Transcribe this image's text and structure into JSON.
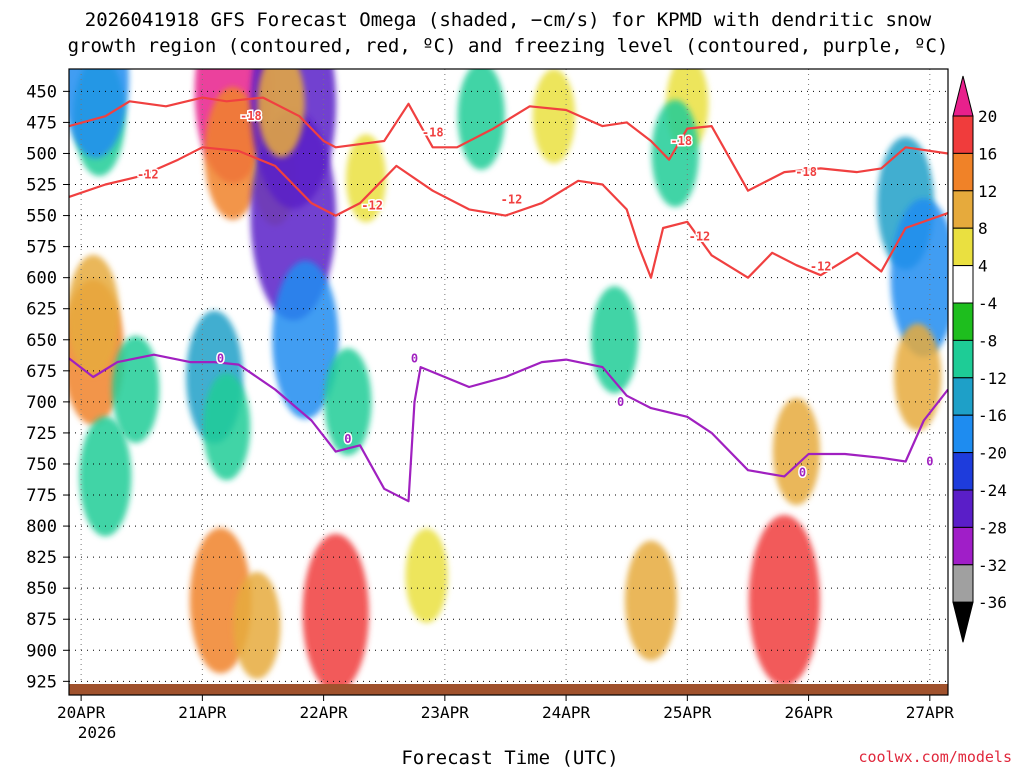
{
  "chart_data": {
    "type": "heatmap",
    "title_line1": "2026041918 GFS Forecast Omega (shaded, −cm/s) for KPMD with dendritic snow",
    "title_line2": "growth region (contoured, red, ºC) and freezing level (contoured, purple, ºC)",
    "xlabel": "Forecast Time (UTC)",
    "credit": "coolwx.com/models",
    "x_ticks": [
      "20APR",
      "21APR",
      "22APR",
      "23APR",
      "24APR",
      "25APR",
      "26APR",
      "27APR"
    ],
    "x_year": "2026",
    "x_range_days": [
      -0.1,
      7.15
    ],
    "y_range_hpa": [
      432,
      936
    ],
    "y_ticks": [
      450,
      475,
      500,
      525,
      550,
      575,
      600,
      625,
      650,
      675,
      700,
      725,
      750,
      775,
      800,
      825,
      850,
      875,
      900,
      925
    ],
    "colorbar": {
      "labels": [
        "20",
        "16",
        "12",
        "8",
        "4",
        "-4",
        "-8",
        "-12",
        "-16",
        "-20",
        "-24",
        "-28",
        "-32",
        "-36"
      ],
      "colors": [
        "#e8208c",
        "#f03c3c",
        "#f08228",
        "#e6aa3c",
        "#eae040",
        "#ffffff",
        "#1ebe1e",
        "#1ecc96",
        "#1ea0c8",
        "#1e8cf0",
        "#1e3cdc",
        "#5a1ec8",
        "#a01ec8",
        "#a0a0a0",
        "#000000"
      ]
    },
    "omega_cells": [
      {
        "day": 0.1,
        "p": 660,
        "value": 14
      },
      {
        "day": 0.1,
        "p": 630,
        "value": 10
      },
      {
        "day": 0.15,
        "p": 470,
        "value": -10
      },
      {
        "day": 0.12,
        "p": 440,
        "value": -16
      },
      {
        "day": 0.2,
        "p": 760,
        "value": -10
      },
      {
        "day": 0.45,
        "p": 690,
        "value": -8
      },
      {
        "day": 1.25,
        "p": 450,
        "value": 20
      },
      {
        "day": 1.25,
        "p": 500,
        "value": 12
      },
      {
        "day": 1.1,
        "p": 680,
        "value": -12
      },
      {
        "day": 1.2,
        "p": 720,
        "value": -8
      },
      {
        "day": 1.15,
        "p": 860,
        "value": 14
      },
      {
        "day": 1.45,
        "p": 880,
        "value": 8
      },
      {
        "day": 1.6,
        "p": 520,
        "value": 6
      },
      {
        "day": 1.75,
        "p": 460,
        "value": -24
      },
      {
        "day": 1.75,
        "p": 550,
        "value": -24
      },
      {
        "day": 1.65,
        "p": 460,
        "value": 8
      },
      {
        "day": 1.85,
        "p": 650,
        "value": -16
      },
      {
        "day": 2.1,
        "p": 870,
        "value": 16
      },
      {
        "day": 2.2,
        "p": 700,
        "value": -8
      },
      {
        "day": 2.35,
        "p": 520,
        "value": 5
      },
      {
        "day": 2.85,
        "p": 840,
        "value": 6
      },
      {
        "day": 3.3,
        "p": 470,
        "value": -8
      },
      {
        "day": 3.9,
        "p": 470,
        "value": 6
      },
      {
        "day": 4.4,
        "p": 650,
        "value": -8
      },
      {
        "day": 4.7,
        "p": 860,
        "value": 10
      },
      {
        "day": 5.8,
        "p": 860,
        "value": 18
      },
      {
        "day": 5.9,
        "p": 740,
        "value": 8
      },
      {
        "day": 6.8,
        "p": 540,
        "value": -12
      },
      {
        "day": 6.95,
        "p": 600,
        "value": -16
      },
      {
        "day": 6.9,
        "p": 680,
        "value": 8
      },
      {
        "day": 5.0,
        "p": 460,
        "value": 6
      },
      {
        "day": 4.9,
        "p": 500,
        "value": -8
      }
    ],
    "series": [
      {
        "name": "-18 C isotherm",
        "color": "#f04040",
        "label": "-18",
        "x": [
          -0.1,
          0.2,
          0.4,
          0.7,
          1.0,
          1.2,
          1.5,
          1.8,
          2.0,
          2.1,
          2.5,
          2.7,
          2.9,
          3.1,
          3.4,
          3.7,
          4.0,
          4.3,
          4.5,
          4.7,
          4.85,
          5.0,
          5.2,
          5.5,
          5.8,
          6.1,
          6.4,
          6.6,
          6.8,
          7.15
        ],
        "y": [
          478,
          470,
          458,
          462,
          455,
          458,
          455,
          470,
          490,
          495,
          490,
          460,
          495,
          495,
          480,
          462,
          465,
          478,
          475,
          490,
          505,
          480,
          478,
          530,
          515,
          512,
          515,
          512,
          495,
          500
        ]
      },
      {
        "name": "-12 C isotherm",
        "color": "#f04040",
        "label": "-12",
        "x": [
          -0.1,
          0.2,
          0.5,
          0.8,
          1.0,
          1.3,
          1.6,
          1.9,
          2.1,
          2.3,
          2.6,
          2.9,
          3.2,
          3.5,
          3.8,
          4.1,
          4.3,
          4.5,
          4.6,
          4.7,
          4.8,
          5.0,
          5.2,
          5.5,
          5.7,
          5.9,
          6.1,
          6.4,
          6.6,
          6.8,
          7.15
        ],
        "y": [
          535,
          525,
          518,
          505,
          495,
          498,
          510,
          540,
          550,
          540,
          510,
          530,
          545,
          550,
          540,
          522,
          525,
          545,
          575,
          600,
          560,
          555,
          582,
          600,
          580,
          590,
          598,
          580,
          595,
          560,
          548
        ]
      },
      {
        "name": "0 C freezing level",
        "color": "#a020c0",
        "label": "0",
        "x": [
          -0.1,
          0.1,
          0.3,
          0.6,
          0.9,
          1.1,
          1.3,
          1.6,
          1.9,
          2.1,
          2.3,
          2.5,
          2.7,
          2.75,
          2.8,
          3.0,
          3.2,
          3.5,
          3.8,
          4.0,
          4.3,
          4.5,
          4.7,
          5.0,
          5.2,
          5.5,
          5.8,
          6.0,
          6.3,
          6.6,
          6.8,
          6.95,
          7.15
        ],
        "y": [
          665,
          680,
          668,
          662,
          668,
          668,
          670,
          690,
          715,
          740,
          735,
          770,
          780,
          700,
          672,
          680,
          688,
          680,
          668,
          666,
          672,
          695,
          705,
          712,
          725,
          755,
          760,
          742,
          742,
          745,
          748,
          715,
          690
        ]
      }
    ],
    "contour_labels": [
      {
        "text": "-18",
        "day": 1.4,
        "p": 470
      },
      {
        "text": "-18",
        "day": 2.9,
        "p": 483
      },
      {
        "text": "-18",
        "day": 4.95,
        "p": 490
      },
      {
        "text": "-18",
        "day": 5.98,
        "p": 515
      },
      {
        "text": "-12",
        "day": 0.55,
        "p": 517
      },
      {
        "text": "-12",
        "day": 2.4,
        "p": 542
      },
      {
        "text": "-12",
        "day": 3.55,
        "p": 537
      },
      {
        "text": "-12",
        "day": 5.1,
        "p": 567
      },
      {
        "text": "-12",
        "day": 6.1,
        "p": 591
      },
      {
        "text": "0",
        "day": 1.15,
        "p": 665
      },
      {
        "text": "0",
        "day": 2.2,
        "p": 730
      },
      {
        "text": "0",
        "day": 2.75,
        "p": 665
      },
      {
        "text": "0",
        "day": 4.45,
        "p": 700
      },
      {
        "text": "0",
        "day": 5.95,
        "p": 757
      },
      {
        "text": "0",
        "day": 7.0,
        "p": 748
      }
    ]
  }
}
